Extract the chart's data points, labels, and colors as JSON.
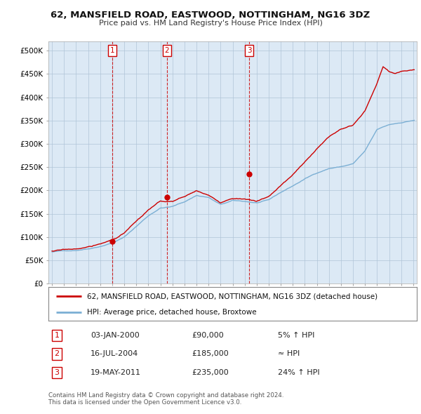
{
  "title": "62, MANSFIELD ROAD, EASTWOOD, NOTTINGHAM, NG16 3DZ",
  "subtitle": "Price paid vs. HM Land Registry's House Price Index (HPI)",
  "ylabel_ticks": [
    "£0",
    "£50K",
    "£100K",
    "£150K",
    "£200K",
    "£250K",
    "£300K",
    "£350K",
    "£400K",
    "£450K",
    "£500K"
  ],
  "ytick_vals": [
    0,
    50000,
    100000,
    150000,
    200000,
    250000,
    300000,
    350000,
    400000,
    450000,
    500000
  ],
  "xlim_start": 1994.7,
  "xlim_end": 2025.3,
  "ylim": [
    0,
    520000
  ],
  "legend_line1": "62, MANSFIELD ROAD, EASTWOOD, NOTTINGHAM, NG16 3DZ (detached house)",
  "legend_line2": "HPI: Average price, detached house, Broxtowe",
  "transactions": [
    {
      "num": 1,
      "date": "03-JAN-2000",
      "price": 90000,
      "rel": "5% ↑ HPI",
      "year": 2000.01
    },
    {
      "num": 2,
      "date": "16-JUL-2004",
      "price": 185000,
      "rel": "≈ HPI",
      "year": 2004.54
    },
    {
      "num": 3,
      "date": "19-MAY-2011",
      "price": 235000,
      "rel": "24% ↑ HPI",
      "year": 2011.38
    }
  ],
  "footer1": "Contains HM Land Registry data © Crown copyright and database right 2024.",
  "footer2": "This data is licensed under the Open Government Licence v3.0.",
  "hpi_color": "#7bafd4",
  "price_color": "#cc0000",
  "bg_plot": "#dce9f5",
  "vline_color": "#cc0000",
  "bg_color": "#ffffff",
  "grid_color": "#b0c4d8"
}
